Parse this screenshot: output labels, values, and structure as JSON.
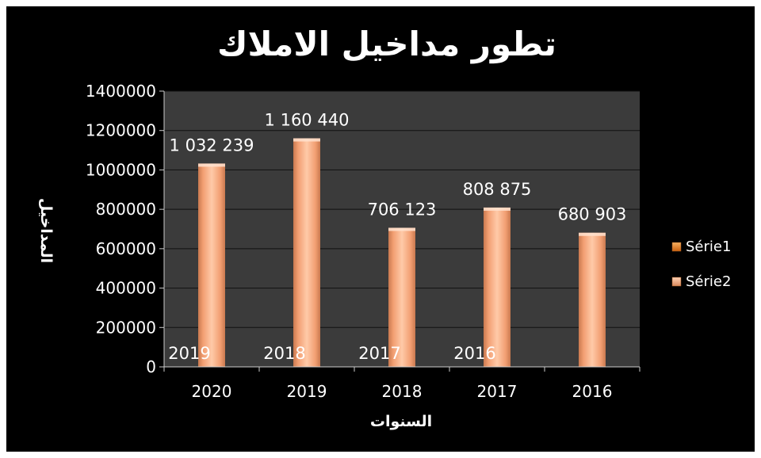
{
  "chart_data": {
    "type": "bar",
    "title": "تطور مداخيل الاملاك",
    "xlabel": "السنوات",
    "ylabel": "المداخيل",
    "categories": [
      "2020",
      "2019",
      "2018",
      "2017",
      "2016"
    ],
    "series": [
      {
        "name": "Série1",
        "values": [
          2019,
          2018,
          2017,
          2016,
          null
        ],
        "labels": [
          "2019",
          "2018",
          "2017",
          "2016",
          ""
        ]
      },
      {
        "name": "Série2",
        "values": [
          1032239,
          1160440,
          706123,
          808875,
          680903
        ],
        "labels": [
          "1 032 239",
          "1 160 440",
          "706 123",
          "808 875",
          "680 903"
        ]
      }
    ],
    "ylim": [
      0,
      1400000
    ],
    "yticks": [
      0,
      200000,
      400000,
      600000,
      800000,
      1000000,
      1200000,
      1400000
    ],
    "grid": true,
    "legend": "right",
    "colors": {
      "background": "#000000",
      "plot_area": "#3b3b3b",
      "gridline": "#111111",
      "bar_base": "#f4a77c",
      "bar_light": "#ffd2b4",
      "bar_dark": "#d9885c",
      "series1_legend": "#e07a1c",
      "series2_legend": "#f0a77a",
      "text": "#ffffff"
    }
  }
}
